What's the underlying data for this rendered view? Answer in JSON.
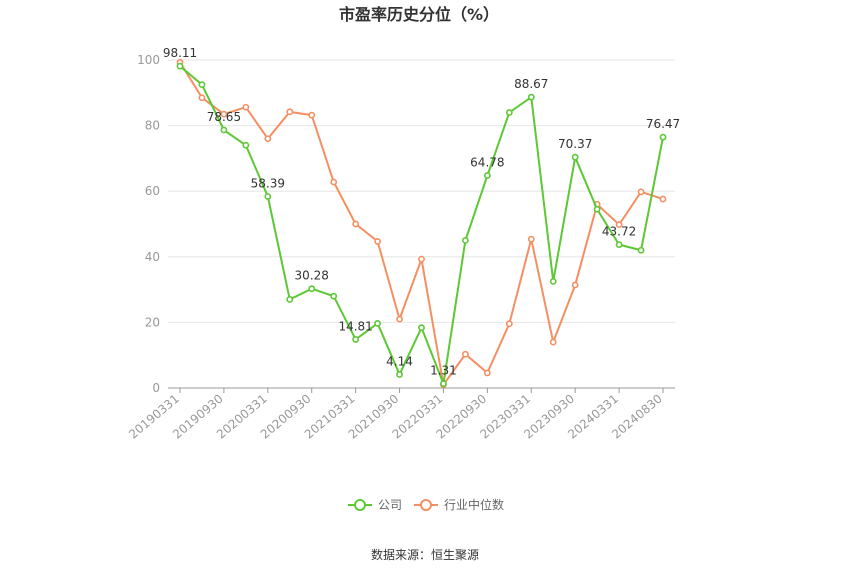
{
  "chart_data": {
    "type": "line",
    "title": "市盈率历史分位（%）",
    "xlabel": "",
    "ylabel": "",
    "ylim": [
      0,
      100
    ],
    "yticks": [
      0,
      20,
      40,
      60,
      80,
      100
    ],
    "grid": true,
    "legend_position": "bottom",
    "x": [
      "20190331",
      "20190630",
      "20190930",
      "20191231",
      "20200331",
      "20200630",
      "20200930",
      "20201231",
      "20210331",
      "20210630",
      "20210930",
      "20211231",
      "20220331",
      "20220630",
      "20220930",
      "20221231",
      "20230331",
      "20230630",
      "20230930",
      "20231231",
      "20240331",
      "20240630",
      "20240830"
    ],
    "xtick_labels": [
      "20190331",
      "20190930",
      "20200331",
      "20200930",
      "20210331",
      "20210930",
      "20220331",
      "20220930",
      "20230331",
      "20230930",
      "20240331",
      "20240830"
    ],
    "series": [
      {
        "name": "公司",
        "color": "#5cc834",
        "values": [
          98.11,
          92.5,
          78.65,
          74.0,
          58.39,
          27.0,
          30.28,
          28.0,
          14.81,
          19.7,
          4.14,
          18.4,
          1.31,
          45.0,
          64.78,
          84.0,
          88.67,
          32.5,
          70.37,
          54.5,
          43.72,
          42.0,
          76.47
        ],
        "data_labels": [
          {
            "index": 0,
            "text": "98.11"
          },
          {
            "index": 2,
            "text": "78.65"
          },
          {
            "index": 4,
            "text": "58.39"
          },
          {
            "index": 6,
            "text": "30.28"
          },
          {
            "index": 8,
            "text": "14.81"
          },
          {
            "index": 10,
            "text": "4.14"
          },
          {
            "index": 12,
            "text": "1.31"
          },
          {
            "index": 14,
            "text": "64.78"
          },
          {
            "index": 16,
            "text": "88.67"
          },
          {
            "index": 18,
            "text": "70.37"
          },
          {
            "index": 20,
            "text": "43.72"
          },
          {
            "index": 22,
            "text": "76.47"
          }
        ]
      },
      {
        "name": "行业中位数",
        "color": "#f58f62",
        "values": [
          99.3,
          88.5,
          83.5,
          85.6,
          76.0,
          84.2,
          83.2,
          62.8,
          50.0,
          44.7,
          21.0,
          39.3,
          1.0,
          10.3,
          4.6,
          19.6,
          45.4,
          14.0,
          31.4,
          56.0,
          49.8,
          59.8,
          57.6
        ],
        "data_labels": []
      }
    ]
  },
  "footer": {
    "source": "数据来源：恒生聚源"
  }
}
